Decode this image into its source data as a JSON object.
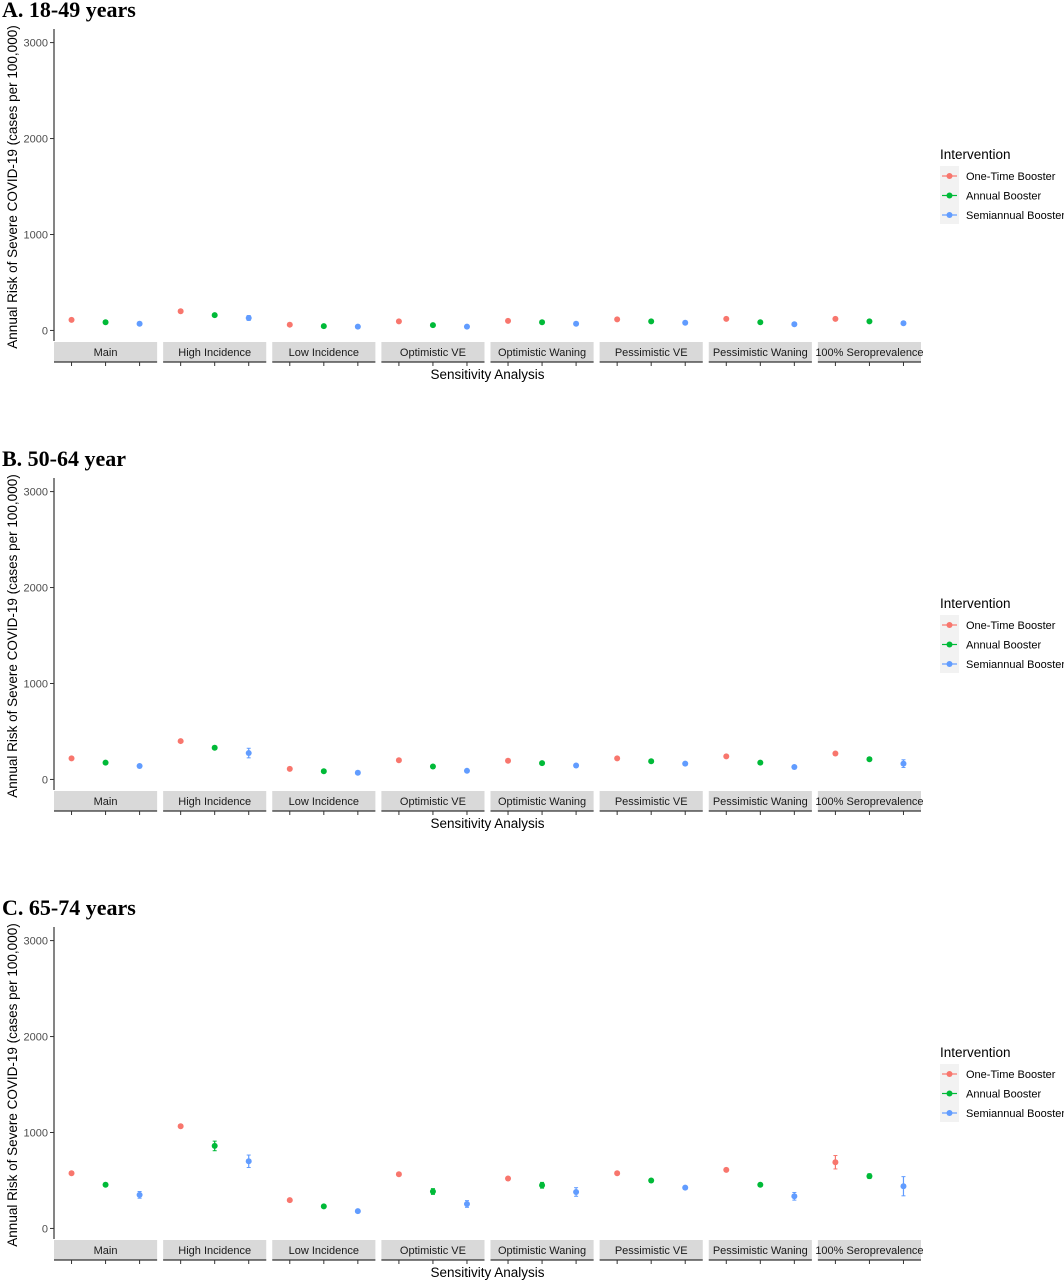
{
  "chart_data": [
    {
      "type": "scatter",
      "title": "A.   18-49 years",
      "xlabel": "Sensitivity Analysis",
      "ylabel": "Annual Risk of Severe COVID-19 (cases per 100,000)",
      "yticks": [
        0,
        1000,
        2000,
        3000
      ],
      "ylim": [
        -110,
        3100
      ],
      "legend_title": "Intervention",
      "facets": [
        "Main",
        "High Incidence",
        "Low Incidence",
        "Optimistic VE",
        "Optimistic Waning",
        "Pessimistic VE",
        "Pessimistic Waning",
        "100% Seroprevalence"
      ],
      "series": [
        {
          "name": "One-Time Booster",
          "color": "#F8766D",
          "values": [
            110,
            200,
            60,
            95,
            100,
            115,
            120,
            120
          ],
          "err": [
            0,
            0,
            0,
            0,
            0,
            0,
            0,
            0
          ]
        },
        {
          "name": "Annual Booster",
          "color": "#00BA38",
          "values": [
            85,
            160,
            45,
            55,
            85,
            95,
            85,
            95
          ],
          "err": [
            0,
            0,
            0,
            0,
            0,
            0,
            0,
            0
          ]
        },
        {
          "name": "Semiannual Booster",
          "color": "#619CFF",
          "values": [
            70,
            130,
            40,
            40,
            70,
            80,
            65,
            75
          ],
          "err": [
            0,
            25,
            0,
            0,
            0,
            0,
            0,
            0
          ]
        }
      ],
      "legend_placement": "right",
      "grid": false
    },
    {
      "type": "scatter",
      "title": "B.   50-64 year",
      "xlabel": "Sensitivity Analysis",
      "ylabel": "Annual Risk of Severe COVID-19 (cases per 100,000)",
      "yticks": [
        0,
        1000,
        2000,
        3000
      ],
      "ylim": [
        -110,
        3100
      ],
      "legend_title": "Intervention",
      "facets": [
        "Main",
        "High Incidence",
        "Low Incidence",
        "Optimistic VE",
        "Optimistic Waning",
        "Pessimistic VE",
        "Pessimistic Waning",
        "100% Seroprevalence"
      ],
      "series": [
        {
          "name": "One-Time Booster",
          "color": "#F8766D",
          "values": [
            220,
            400,
            110,
            200,
            195,
            220,
            240,
            270
          ],
          "err": [
            0,
            0,
            0,
            0,
            0,
            0,
            0,
            0
          ]
        },
        {
          "name": "Annual Booster",
          "color": "#00BA38",
          "values": [
            175,
            330,
            85,
            135,
            170,
            190,
            175,
            210
          ],
          "err": [
            0,
            0,
            0,
            0,
            0,
            0,
            0,
            0
          ]
        },
        {
          "name": "Semiannual Booster",
          "color": "#619CFF",
          "values": [
            140,
            275,
            70,
            90,
            145,
            165,
            130,
            165
          ],
          "err": [
            0,
            50,
            0,
            0,
            0,
            0,
            0,
            40
          ]
        }
      ],
      "legend_placement": "right",
      "grid": false
    },
    {
      "type": "scatter",
      "title": "C.   65-74 years",
      "xlabel": "Sensitivity Analysis",
      "ylabel": "Annual Risk of Severe COVID-19 (cases per 100,000)",
      "yticks": [
        0,
        1000,
        2000,
        3000
      ],
      "ylim": [
        -110,
        3100
      ],
      "legend_title": "Intervention",
      "facets": [
        "Main",
        "High Incidence",
        "Low Incidence",
        "Optimistic VE",
        "Optimistic Waning",
        "Pessimistic VE",
        "Pessimistic Waning",
        "100% Seroprevalence"
      ],
      "series": [
        {
          "name": "One-Time Booster",
          "color": "#F8766D",
          "values": [
            575,
            1065,
            295,
            565,
            520,
            575,
            610,
            690
          ],
          "err": [
            0,
            0,
            0,
            0,
            0,
            0,
            0,
            70
          ]
        },
        {
          "name": "Annual Booster",
          "color": "#00BA38",
          "values": [
            455,
            860,
            230,
            385,
            450,
            500,
            455,
            545
          ],
          "err": [
            0,
            50,
            0,
            30,
            30,
            0,
            0,
            25
          ]
        },
        {
          "name": "Semiannual Booster",
          "color": "#619CFF",
          "values": [
            350,
            700,
            180,
            255,
            380,
            425,
            335,
            440
          ],
          "err": [
            35,
            65,
            0,
            35,
            45,
            0,
            40,
            100
          ]
        }
      ],
      "legend_placement": "right",
      "grid": false
    }
  ]
}
